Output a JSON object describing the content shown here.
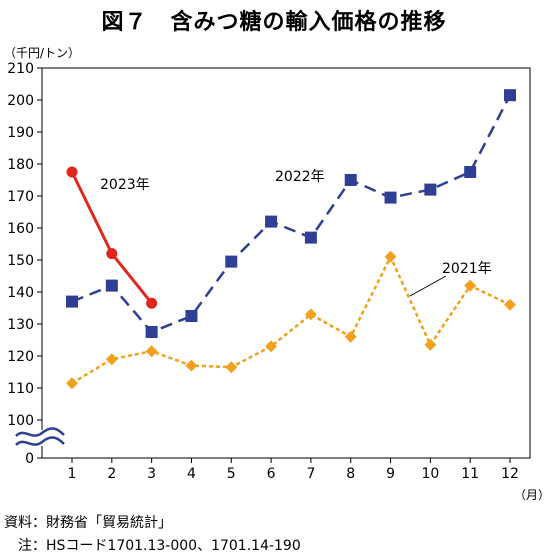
{
  "title": "図７　含みつ糖の輸入価格の推移",
  "source": "資料：財務省「貿易統計」",
  "note": "　注：HSコード1701.13-000、1701.14-190",
  "chart_data": {
    "type": "line",
    "y_unit_label": "（千円/トン）",
    "x_unit_label": "（月）",
    "x": [
      1,
      2,
      3,
      4,
      5,
      6,
      7,
      8,
      9,
      10,
      11,
      12
    ],
    "y_ticks": [
      0,
      100,
      110,
      120,
      130,
      140,
      150,
      160,
      170,
      180,
      190,
      200,
      210
    ],
    "ylim": [
      100,
      210
    ],
    "y_axis_break": true,
    "grid": false,
    "series": [
      {
        "name": "2021年",
        "color": "#f2a11e",
        "marker": "diamond",
        "line_style": "dotted",
        "x": [
          1,
          2,
          3,
          4,
          5,
          6,
          7,
          8,
          9,
          10,
          11,
          12
        ],
        "values": [
          111.5,
          119,
          121.5,
          117,
          116.5,
          123,
          133,
          126,
          151,
          123.5,
          142,
          136
        ]
      },
      {
        "name": "2022年",
        "color": "#2e3f95",
        "marker": "square",
        "line_style": "dashed",
        "x": [
          1,
          2,
          3,
          4,
          5,
          6,
          7,
          8,
          9,
          10,
          11,
          12
        ],
        "values": [
          137,
          142,
          127.5,
          132.5,
          149.5,
          162,
          157,
          175,
          169.5,
          172,
          177.5,
          201.5
        ]
      },
      {
        "name": "2023年",
        "color": "#e2261c",
        "marker": "circle",
        "line_style": "solid",
        "x": [
          1,
          2,
          3
        ],
        "values": [
          177.5,
          152,
          136.5
        ]
      }
    ]
  }
}
